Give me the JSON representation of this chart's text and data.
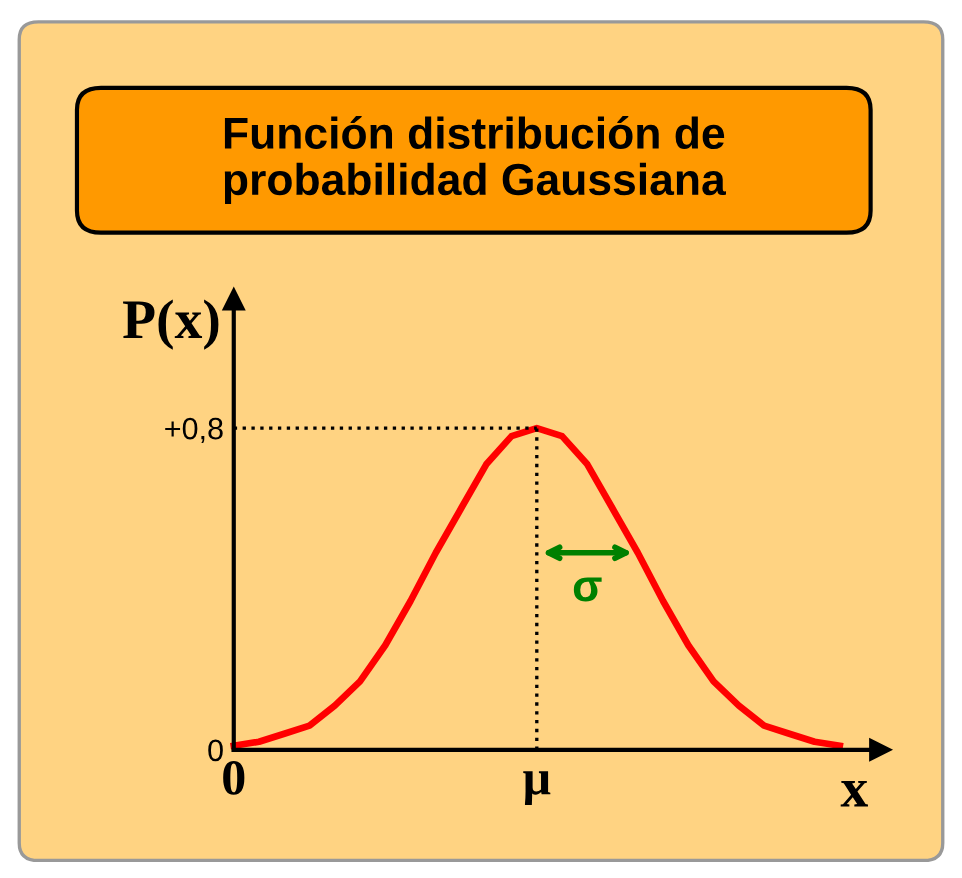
{
  "chart_data": {
    "type": "line",
    "title": "Función distribución de\nprobabilidad Gaussiana",
    "xlabel": "x",
    "ylabel": "P(x)",
    "categories": [
      "0",
      null,
      null,
      null,
      null,
      null,
      null,
      null,
      null,
      null,
      null,
      null,
      "μ",
      null,
      null,
      null,
      null,
      null,
      null,
      null,
      null,
      null,
      null,
      null,
      null
    ],
    "series": [
      {
        "color": "#ff0000",
        "line_style": "solid",
        "values": [
          0.01,
          0.02,
          0.04,
          0.06,
          0.11,
          0.17,
          0.26,
          0.37,
          0.49,
          0.6,
          0.71,
          0.78,
          0.8,
          0.78,
          0.71,
          0.6,
          0.49,
          0.37,
          0.26,
          0.17,
          0.11,
          0.06,
          0.04,
          0.02,
          0.01
        ]
      }
    ],
    "ref_lines": [
      {
        "axis": "y",
        "value": 0.8,
        "color": "#000000",
        "line_style": "dotted"
      },
      {
        "axis": "x",
        "value": "μ",
        "color": "#000000",
        "line_style": "dotted"
      }
    ],
    "ylim": [
      0,
      1.12
    ],
    "yticks": [
      0,
      {
        "value": 0.8,
        "label": "+0,8"
      }
    ],
    "annotations": [
      "σ"
    ],
    "grid": false,
    "legend": false
  }
}
